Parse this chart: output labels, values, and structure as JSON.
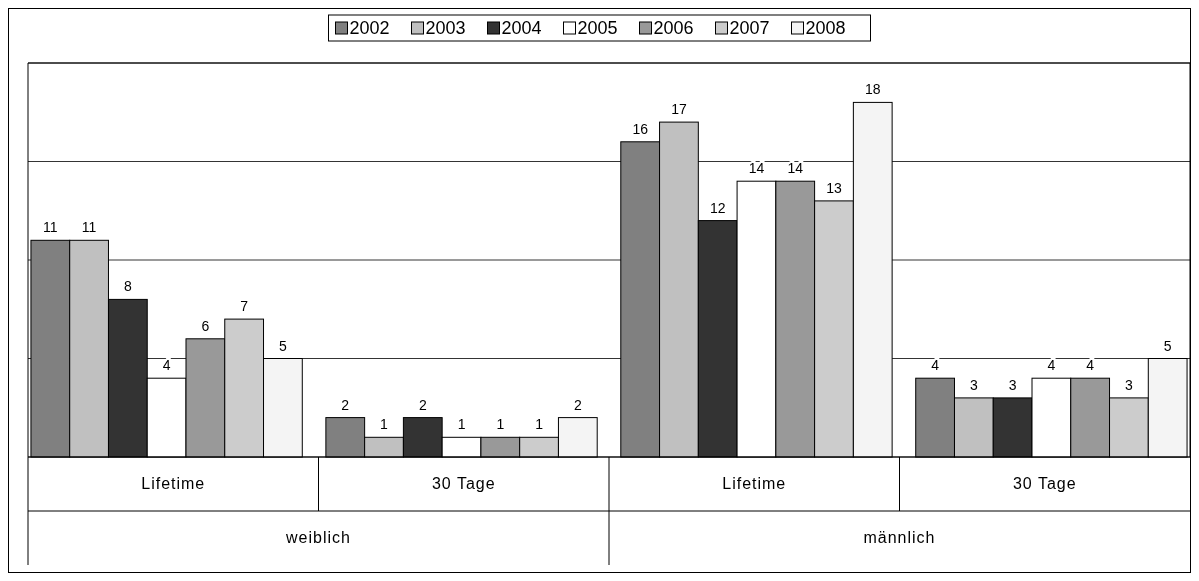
{
  "chart_data": {
    "type": "bar",
    "categories": [
      "Lifetime",
      "30 Tage",
      "Lifetime",
      "30 Tage"
    ],
    "annotations": [
      "weiblich",
      "männlich"
    ],
    "series": [
      {
        "name": "2002",
        "color": "#808080",
        "values": [
          11,
          2,
          16,
          4
        ]
      },
      {
        "name": "2003",
        "color": "#c0c0c0",
        "values": [
          11,
          1,
          17,
          3
        ]
      },
      {
        "name": "2004",
        "color": "#333333",
        "values": [
          8,
          2,
          12,
          3
        ]
      },
      {
        "name": "2005",
        "color": "#ffffff",
        "values": [
          4,
          1,
          14,
          4
        ]
      },
      {
        "name": "2006",
        "color": "#999999",
        "values": [
          6,
          1,
          14,
          4
        ]
      },
      {
        "name": "2007",
        "color": "#cccccc",
        "values": [
          7,
          1,
          13,
          3
        ]
      },
      {
        "name": "2008",
        "color": "#f4f4f4",
        "values": [
          5,
          2,
          18,
          5
        ]
      }
    ],
    "ylim": [
      0,
      20
    ],
    "yticks": [
      {
        "value": 0,
        "label": null
      },
      {
        "value": 5,
        "label": null
      },
      {
        "value": 10,
        "label": null
      },
      {
        "value": 15,
        "label": null
      },
      {
        "value": 20,
        "label": null
      }
    ],
    "grid": "y",
    "legend": "top",
    "data_labels": true
  }
}
